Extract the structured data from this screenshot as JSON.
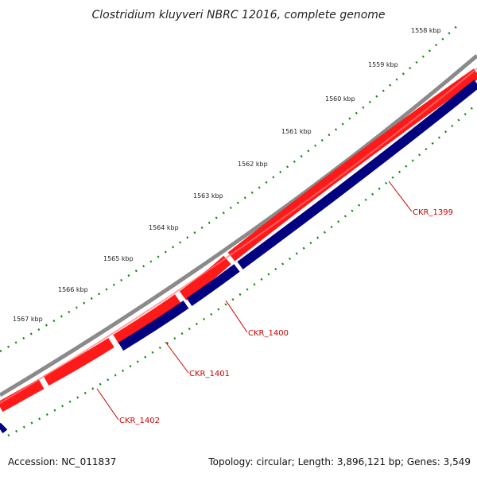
{
  "title": "Clostridium kluyveri NBRC 12016, complete genome",
  "ticks": [
    {
      "kbp": 1558,
      "label": "1558 kbp"
    },
    {
      "kbp": 1559,
      "label": "1559 kbp"
    },
    {
      "kbp": 1560,
      "label": "1560 kbp"
    },
    {
      "kbp": 1561,
      "label": "1561 kbp"
    },
    {
      "kbp": 1562,
      "label": "1562 kbp"
    },
    {
      "kbp": 1563,
      "label": "1563 kbp"
    },
    {
      "kbp": 1564,
      "label": "1564 kbp"
    },
    {
      "kbp": 1565,
      "label": "1565 kbp"
    },
    {
      "kbp": 1566,
      "label": "1566 kbp"
    },
    {
      "kbp": 1567,
      "label": "1567 kbp"
    }
  ],
  "genes": [
    {
      "name": "CKR_1399",
      "strand": "reverse"
    },
    {
      "name": "CKR_1400",
      "strand": "reverse"
    },
    {
      "name": "CKR_1401",
      "strand": "reverse"
    },
    {
      "name": "CKR_1402",
      "strand": "reverse"
    }
  ],
  "footer": {
    "accession": "Accession: NC_011837",
    "summary": "Topology: circular; Length: 3,896,121 bp; Genes: 3,549"
  },
  "colors": {
    "backbone": "#8c8c8c",
    "forward_cds": "#ee0000",
    "reverse_cds": "#000080",
    "ticks": "#118811",
    "gene_label": "#cc0000"
  }
}
